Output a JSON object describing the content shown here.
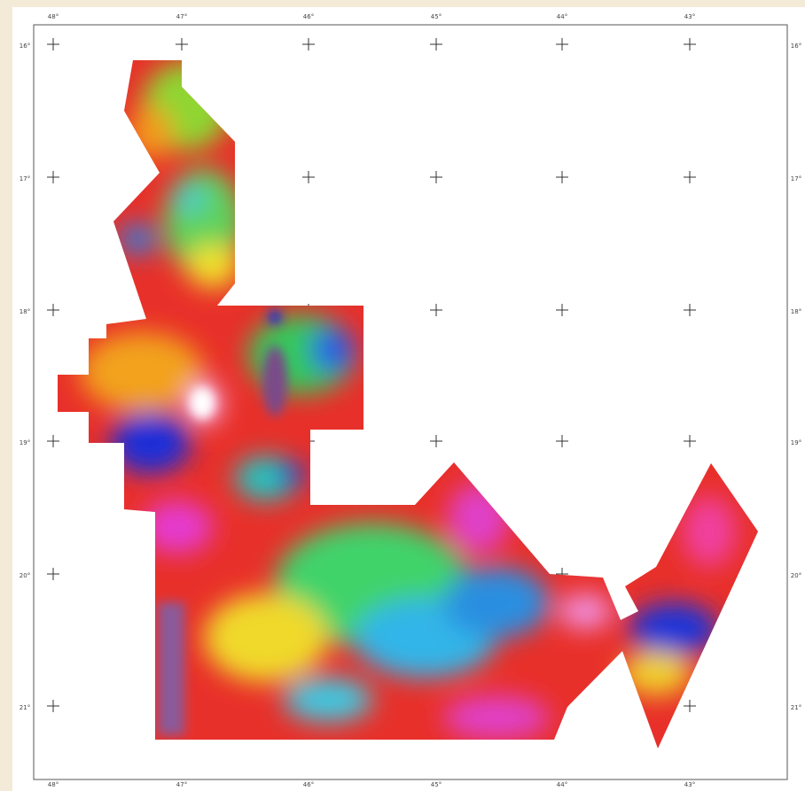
{
  "map": {
    "top_labels": [
      "48°",
      "47°",
      "46°",
      "45°",
      "44°",
      "43°"
    ],
    "bottom_labels": [
      "48°",
      "47°",
      "46°",
      "45°",
      "44°",
      "43°"
    ],
    "left_labels": [
      "16°",
      "17°",
      "18°",
      "19°",
      "20°",
      "21°"
    ],
    "right_labels": [
      "16°",
      "17°",
      "18°",
      "19°",
      "20°",
      "21°"
    ]
  }
}
